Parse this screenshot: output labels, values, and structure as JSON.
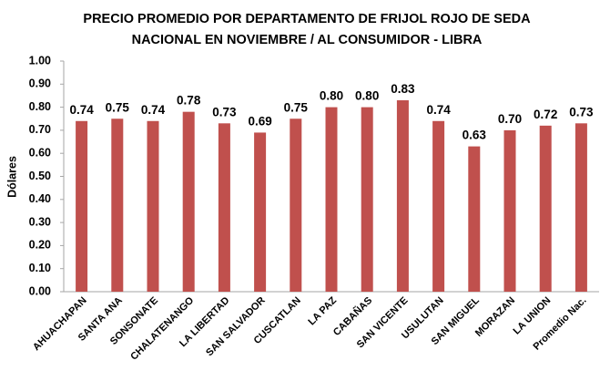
{
  "chart_data": {
    "type": "bar",
    "title": [
      "PRECIO PROMEDIO POR DEPARTAMENTO DE FRIJOL  ROJO DE SEDA",
      "NACIONAL  EN NOVIEMBRE / AL CONSUMIDOR - LIBRA"
    ],
    "y_label": "Dólares",
    "categories": [
      "AHUACHAPAN",
      "SANTA ANA",
      "SONSONATE",
      "CHALATENANGO",
      "LA LIBERTAD",
      "SAN SALVADOR",
      "CUSCATLAN",
      "LA PAZ",
      "CABAÑAS",
      "SAN VICENTE",
      "USULUTAN",
      "SAN MIGUEL",
      "MORAZAN",
      "LA UNION",
      "Promedio Nac."
    ],
    "values": [
      0.74,
      0.75,
      0.74,
      0.78,
      0.73,
      0.69,
      0.75,
      0.8,
      0.8,
      0.83,
      0.74,
      0.63,
      0.7,
      0.72,
      0.73
    ],
    "value_labels": [
      "0.74",
      "0.75",
      "0.74",
      "0.78",
      "0.73",
      "0.69",
      "0.75",
      "0.80",
      "0.80",
      "0.83",
      "0.74",
      "0.63",
      "0.70",
      "0.72",
      "0.73"
    ],
    "color": "#c0504d",
    "ylim": [
      0,
      1
    ],
    "yticks": [
      {
        "value": 0,
        "label": "0.00"
      },
      {
        "value": 0.1,
        "label": "0.10"
      },
      {
        "value": 0.2,
        "label": "0.20"
      },
      {
        "value": 0.3,
        "label": "0.30"
      },
      {
        "value": 0.4,
        "label": "0.40"
      },
      {
        "value": 0.5,
        "label": "0.50"
      },
      {
        "value": 0.6,
        "label": "0.60"
      },
      {
        "value": 0.7,
        "label": "0.70"
      },
      {
        "value": 0.8,
        "label": "0.80"
      },
      {
        "value": 0.9,
        "label": "0.90"
      },
      {
        "value": 1,
        "label": "1.00"
      }
    ],
    "grid": false
  }
}
